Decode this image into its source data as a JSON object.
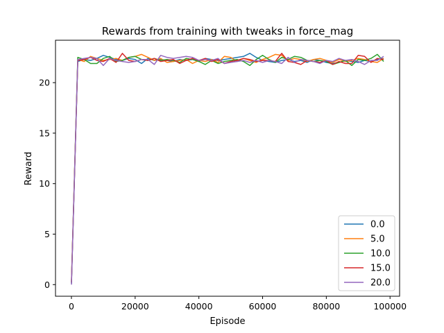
{
  "chart_data": {
    "type": "line",
    "title": "Rewards from training with tweaks in force_mag",
    "xlabel": "Episode",
    "ylabel": "Reward",
    "xlim": [
      -5000,
      103000
    ],
    "ylim": [
      -1.15,
      24.2
    ],
    "xticks": [
      0,
      20000,
      40000,
      60000,
      80000,
      100000
    ],
    "xtick_labels": [
      "0",
      "20000",
      "40000",
      "60000",
      "80000",
      "100000"
    ],
    "yticks": [
      0,
      5,
      10,
      15,
      20
    ],
    "ytick_labels": [
      "0",
      "5",
      "10",
      "15",
      "20"
    ],
    "grid": false,
    "legend_position": "lower right",
    "x": [
      0,
      2000,
      4000,
      6000,
      8000,
      10000,
      12000,
      14000,
      16000,
      18000,
      20000,
      22000,
      24000,
      26000,
      28000,
      30000,
      32000,
      34000,
      36000,
      38000,
      40000,
      42000,
      44000,
      46000,
      48000,
      50000,
      52000,
      54000,
      56000,
      58000,
      60000,
      62000,
      64000,
      66000,
      68000,
      70000,
      72000,
      74000,
      76000,
      78000,
      80000,
      82000,
      84000,
      86000,
      88000,
      90000,
      92000,
      94000,
      96000,
      98000
    ],
    "series": [
      {
        "name": "0.0",
        "color": "#1f77b4",
        "values": [
          0.1,
          22.1,
          22.3,
          22.2,
          22.4,
          22.7,
          22.5,
          22.3,
          22.2,
          22.4,
          22.3,
          21.9,
          22.4,
          22.2,
          22.3,
          22.2,
          22.1,
          22.3,
          22.2,
          22.3,
          22.1,
          22.4,
          22.3,
          22.2,
          22.3,
          22.4,
          22.5,
          22.6,
          22.9,
          22.5,
          22.2,
          22.1,
          22.0,
          22.2,
          22.3,
          22.1,
          22.2,
          22.0,
          22.3,
          22.2,
          22.0,
          21.9,
          22.0,
          22.2,
          22.1,
          22.0,
          22.2,
          22.1,
          22.3,
          22.4
        ]
      },
      {
        "name": "5.0",
        "color": "#ff7f0e",
        "values": [
          0.3,
          22.3,
          22.1,
          22.6,
          22.4,
          22.2,
          22.3,
          22.4,
          22.2,
          22.5,
          22.6,
          22.8,
          22.5,
          22.2,
          22.4,
          22.0,
          22.1,
          22.2,
          22.3,
          21.9,
          22.2,
          22.1,
          22.3,
          22.0,
          22.6,
          22.5,
          22.1,
          22.4,
          22.2,
          22.0,
          22.3,
          22.5,
          22.8,
          22.7,
          22.2,
          22.4,
          22.3,
          22.1,
          22.3,
          22.4,
          22.2,
          22.0,
          22.3,
          22.1,
          22.2,
          22.4,
          22.3,
          22.1,
          22.0,
          22.4
        ]
      },
      {
        "name": "10.0",
        "color": "#2ca02c",
        "values": [
          0.2,
          22.5,
          22.3,
          21.9,
          21.9,
          22.4,
          22.6,
          22.1,
          22.2,
          22.5,
          22.6,
          22.3,
          22.2,
          22.4,
          22.2,
          22.3,
          22.2,
          22.0,
          22.4,
          22.3,
          22.1,
          21.8,
          22.2,
          21.9,
          22.1,
          22.2,
          22.3,
          22.1,
          21.7,
          22.3,
          22.7,
          22.3,
          22.0,
          22.5,
          22.3,
          22.6,
          22.5,
          22.2,
          22.1,
          22.2,
          22.1,
          21.8,
          22.0,
          22.2,
          21.7,
          22.3,
          22.2,
          22.4,
          22.8,
          22.1
        ]
      },
      {
        "name": "15.0",
        "color": "#d62728",
        "values": [
          0.2,
          22.2,
          22.3,
          22.5,
          22.2,
          22.1,
          22.4,
          22.0,
          22.9,
          22.2,
          22.1,
          22.3,
          22.2,
          22.4,
          22.1,
          22.2,
          22.3,
          21.9,
          22.2,
          22.4,
          22.2,
          22.4,
          22.1,
          22.3,
          21.9,
          22.1,
          22.2,
          22.4,
          22.3,
          22.1,
          22.2,
          22.2,
          22.1,
          22.9,
          22.1,
          22.0,
          21.8,
          22.2,
          22.1,
          22.0,
          22.2,
          21.8,
          22.1,
          21.9,
          21.9,
          22.7,
          22.6,
          22.0,
          22.4,
          22.3
        ]
      },
      {
        "name": "20.0",
        "color": "#9467bd",
        "values": [
          0.0,
          22.3,
          22.4,
          22.5,
          22.4,
          21.7,
          22.4,
          22.2,
          22.1,
          22.0,
          22.1,
          22.3,
          22.3,
          21.8,
          22.7,
          22.5,
          22.4,
          22.5,
          22.6,
          22.5,
          22.2,
          22.3,
          22.2,
          22.4,
          21.9,
          22.0,
          22.1,
          22.2,
          22.0,
          22.2,
          22.0,
          22.2,
          22.1,
          21.9,
          22.5,
          22.0,
          22.3,
          22.2,
          22.1,
          21.9,
          22.2,
          22.1,
          22.4,
          22.2,
          22.3,
          22.1,
          21.8,
          22.2,
          22.2,
          22.6
        ]
      }
    ]
  }
}
